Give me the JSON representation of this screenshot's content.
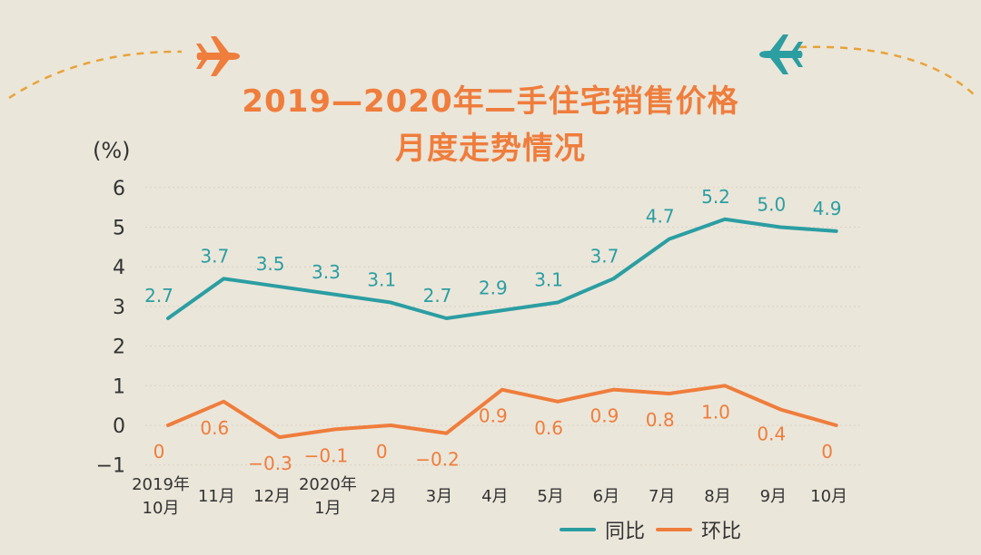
{
  "title_line1": "2019—2020年二手住宅销售价格",
  "title_line2": "月度走势情况",
  "unit": "(%)",
  "colors": {
    "background": "#ebe6da",
    "title": "#ef7d3c",
    "yoy": "#2b9ea2",
    "mom": "#ef7d3c",
    "plane_left": "#ef7d3c",
    "plane_right": "#2b9ea2"
  },
  "icons": [
    "airplane-icon",
    "airplane-icon"
  ],
  "chart_data": {
    "type": "line",
    "categories": [
      [
        "2019年",
        "10月"
      ],
      [
        "11月"
      ],
      [
        "12月"
      ],
      [
        "2020年",
        "1月"
      ],
      [
        "2月"
      ],
      [
        "3月"
      ],
      [
        "4月"
      ],
      [
        "5月"
      ],
      [
        "6月"
      ],
      [
        "7月"
      ],
      [
        "8月"
      ],
      [
        "9月"
      ],
      [
        "10月"
      ]
    ],
    "series": [
      {
        "name": "同比",
        "values": [
          2.7,
          3.7,
          3.5,
          3.3,
          3.1,
          2.7,
          2.9,
          3.1,
          3.7,
          4.7,
          5.2,
          5.0,
          4.9
        ],
        "labels": [
          "2.7",
          "3.7",
          "3.5",
          "3.3",
          "3.1",
          "2.7",
          "2.9",
          "3.1",
          "3.7",
          "4.7",
          "5.2",
          "5.0",
          "4.9"
        ],
        "color": "#2b9ea2"
      },
      {
        "name": "环比",
        "values": [
          0,
          0.6,
          -0.3,
          -0.1,
          0,
          -0.2,
          0.9,
          0.6,
          0.9,
          0.8,
          1.0,
          0.4,
          0
        ],
        "labels": [
          "0",
          "0.6",
          "−0.3",
          "−0.1",
          "0",
          "−0.2",
          "0.9",
          "0.6",
          "0.9",
          "0.8",
          "1.0",
          "0.4",
          "0"
        ],
        "color": "#ef7d3c"
      }
    ],
    "yticks": [
      "6",
      "5",
      "4",
      "3",
      "2",
      "1",
      "0",
      "−1"
    ],
    "ylim": [
      -1,
      6
    ],
    "grid": true,
    "legend_position": "bottom-right"
  }
}
